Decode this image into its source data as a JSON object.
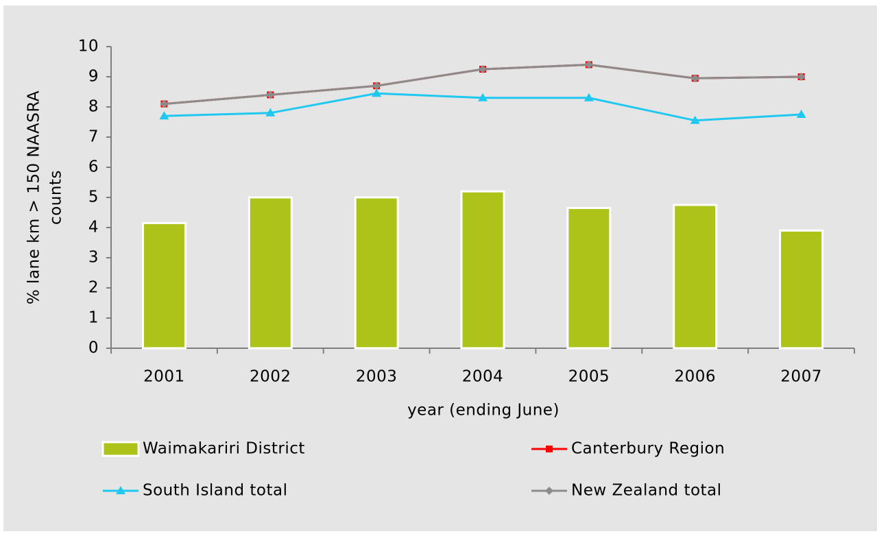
{
  "chart_data": {
    "type": "combo",
    "xlabel": "year (ending June)",
    "ylabel": [
      "% lane km > 150 NAASRA",
      "counts"
    ],
    "categories": [
      "2001",
      "2002",
      "2003",
      "2004",
      "2005",
      "2006",
      "2007"
    ],
    "ylim": [
      0,
      10
    ],
    "yticks": [
      0,
      1,
      2,
      3,
      4,
      5,
      6,
      7,
      8,
      9,
      10
    ],
    "grid": false,
    "series": [
      {
        "name": "Waimakariri District",
        "type": "bar",
        "color": "#adc31a",
        "values": [
          4.15,
          5.0,
          5.0,
          5.2,
          4.65,
          4.75,
          3.9
        ]
      },
      {
        "name": "Canterbury Region",
        "type": "line",
        "marker": "square",
        "color": "#ff0000",
        "values": [
          8.1,
          8.4,
          8.7,
          9.25,
          9.4,
          8.95,
          9.0
        ]
      },
      {
        "name": "South Island total",
        "type": "line",
        "marker": "triangle",
        "color": "#1ec8f0",
        "values": [
          7.7,
          7.8,
          8.45,
          8.3,
          8.3,
          7.55,
          7.75
        ]
      },
      {
        "name": "New Zealand total",
        "type": "line",
        "marker": "diamond",
        "color": "#8c8c8c",
        "values": [
          8.1,
          8.4,
          8.7,
          9.25,
          9.4,
          8.95,
          9.0
        ]
      }
    ]
  }
}
